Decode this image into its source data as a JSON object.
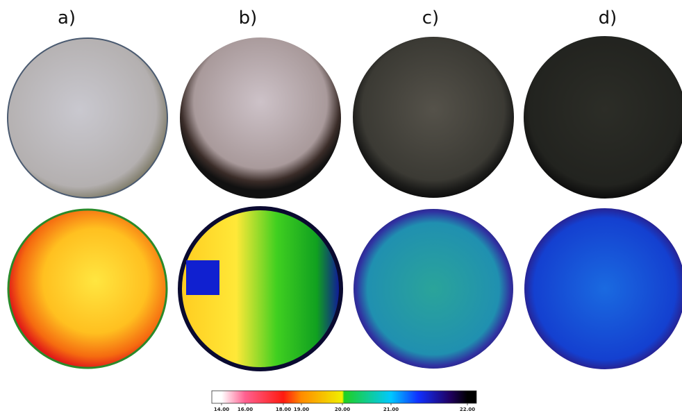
{
  "panels": [
    "a)",
    "b)",
    "c)",
    "d)"
  ],
  "colorbar": {
    "ticks": [
      {
        "value": 14,
        "label": "14.00"
      },
      {
        "value": 16,
        "label": "16.00"
      },
      {
        "value": 18,
        "label": "18.00"
      },
      {
        "value": 19,
        "label": "19.00"
      },
      {
        "value": 20,
        "label": "20.00"
      },
      {
        "value": 21,
        "label": "21.00"
      },
      {
        "value": 22,
        "label": "22.00"
      }
    ]
  }
}
